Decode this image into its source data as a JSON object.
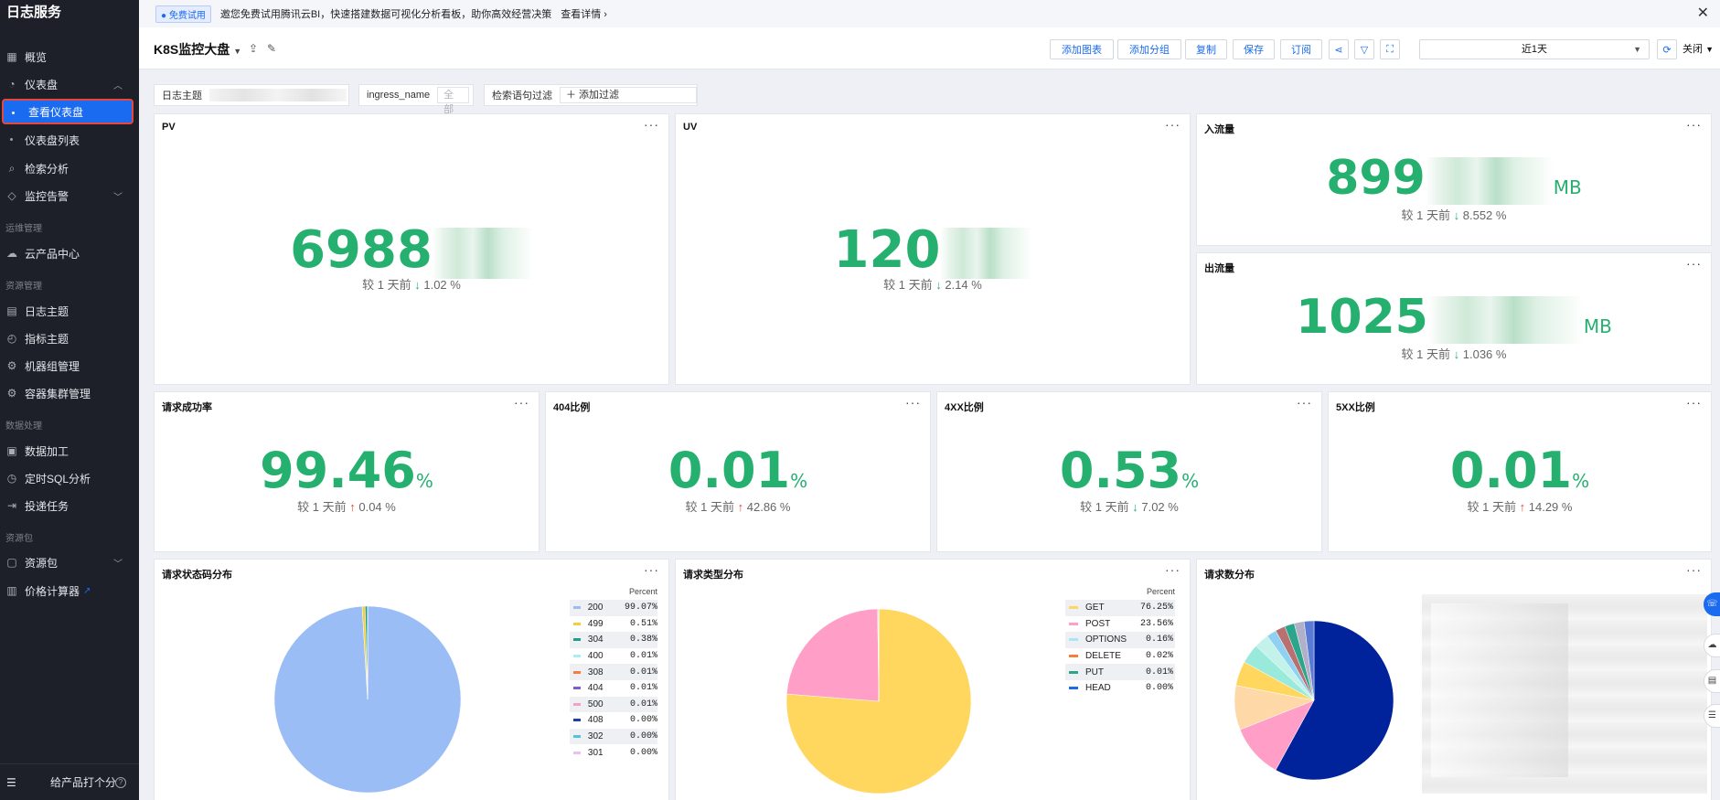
{
  "sidebar": {
    "title": "日志服务",
    "items": [
      {
        "label": "概览"
      },
      {
        "label": "仪表盘"
      },
      {
        "label": "查看仪表盘"
      },
      {
        "label": "仪表盘列表"
      },
      {
        "label": "检索分析"
      },
      {
        "label": "监控告警"
      },
      {
        "label": "云产品中心"
      },
      {
        "label": "日志主题"
      },
      {
        "label": "指标主题"
      },
      {
        "label": "机器组管理"
      },
      {
        "label": "容器集群管理"
      },
      {
        "label": "数据加工"
      },
      {
        "label": "定时SQL分析"
      },
      {
        "label": "投递任务"
      },
      {
        "label": "资源包"
      },
      {
        "label": "价格计算器"
      }
    ],
    "groups": [
      "运维管理",
      "资源管理",
      "数据处理",
      "资源包"
    ],
    "footer": {
      "rate": "给产品打个分"
    }
  },
  "banner": {
    "badge": "● 免费试用",
    "text": "邀您免费试用腾讯云BI，快速搭建数据可视化分析看板，助你高效经营决策",
    "detail": "查看详情 ›"
  },
  "toolbar": {
    "title": "K8S监控大盘",
    "buttons": [
      "添加图表",
      "添加分组",
      "复制",
      "保存",
      "订阅"
    ],
    "time_range": "近1天",
    "close": "关闭"
  },
  "filters": {
    "log_topic_label": "日志主题",
    "ingress_label": "ingress_name",
    "ingress_value": "全部",
    "query_filter_label": "检索语句过滤",
    "add_filter": "＋ 添加过滤"
  },
  "metrics": {
    "pv": {
      "title": "PV",
      "value": "6988",
      "compare": "较 1 天前",
      "arrow": "↓",
      "change": "1.02 %"
    },
    "uv": {
      "title": "UV",
      "value": "120",
      "compare": "较 1 天前",
      "arrow": "↓",
      "change": "2.14 %"
    },
    "inflow": {
      "title": "入流量",
      "value": "899",
      "unit": "MB",
      "compare": "较 1 天前",
      "arrow": "↓",
      "change": "8.552 %"
    },
    "outflow": {
      "title": "出流量",
      "value": "1025",
      "unit": "MB",
      "compare": "较 1 天前",
      "arrow": "↓",
      "change": "1.036 %"
    },
    "success": {
      "title": "请求成功率",
      "value": "99.46",
      "unit": "%",
      "compare": "较 1 天前",
      "arrow": "↑",
      "change": "0.04 %"
    },
    "r404": {
      "title": "404比例",
      "value": "0.01",
      "unit": "%",
      "compare": "较 1 天前",
      "arrow": "↑",
      "change": "42.86 %"
    },
    "r4xx": {
      "title": "4XX比例",
      "value": "0.53",
      "unit": "%",
      "compare": "较 1 天前",
      "arrow": "↓",
      "change": "7.02 %"
    },
    "r5xx": {
      "title": "5XX比例",
      "value": "0.01",
      "unit": "%",
      "compare": "较 1 天前",
      "arrow": "↑",
      "change": "14.29 %"
    }
  },
  "status_panel": {
    "title": "请求状态码分布",
    "legend_header": "Percent"
  },
  "type_panel": {
    "title": "请求类型分布",
    "legend_header": "Percent"
  },
  "count_panel": {
    "title": "请求数分布"
  },
  "more": "···",
  "chart_data": [
    {
      "type": "pie",
      "title": "请求状态码分布",
      "labels": [
        "200",
        "499",
        "304",
        "400",
        "308",
        "404",
        "500",
        "408",
        "302",
        "301"
      ],
      "values": [
        99.07,
        0.51,
        0.38,
        0.01,
        0.01,
        0.01,
        0.01,
        0.0,
        0.0,
        0.0
      ],
      "display": [
        "99.07%",
        "0.51%",
        "0.38%",
        "0.01%",
        "0.01%",
        "0.01%",
        "0.01%",
        "0.00%",
        "0.00%",
        "0.00%"
      ],
      "colors": [
        "#9bbdf6",
        "#f5cd3d",
        "#1f9e89",
        "#a7eef7",
        "#f57f3a",
        "#7e5dcc",
        "#f59fc9",
        "#1f3fb0",
        "#4fc6e0",
        "#e8c2ef"
      ]
    },
    {
      "type": "pie",
      "title": "请求类型分布",
      "labels": [
        "GET",
        "POST",
        "OPTIONS",
        "DELETE",
        "PUT",
        "HEAD"
      ],
      "values": [
        76.25,
        23.56,
        0.16,
        0.02,
        0.01,
        0.0
      ],
      "display": [
        "76.25%",
        "23.56%",
        "0.16%",
        "0.02%",
        "0.01%",
        "0.00%"
      ],
      "colors": [
        "#ffd75e",
        "#ff9fc8",
        "#a9e4f7",
        "#f57f3a",
        "#2ca58d",
        "#1a6bf0"
      ]
    },
    {
      "type": "pie",
      "title": "请求数分布",
      "values": [
        58,
        11,
        9,
        5,
        4,
        3,
        2,
        2,
        2,
        2,
        2
      ],
      "colors": [
        "#00239c",
        "#ff9fc8",
        "#ffd8a8",
        "#ffd75e",
        "#9aeadc",
        "#c2f2ea",
        "#8fd1f2",
        "#b87070",
        "#2ca58d",
        "#b0b0c8",
        "#5a7ad6"
      ]
    }
  ]
}
